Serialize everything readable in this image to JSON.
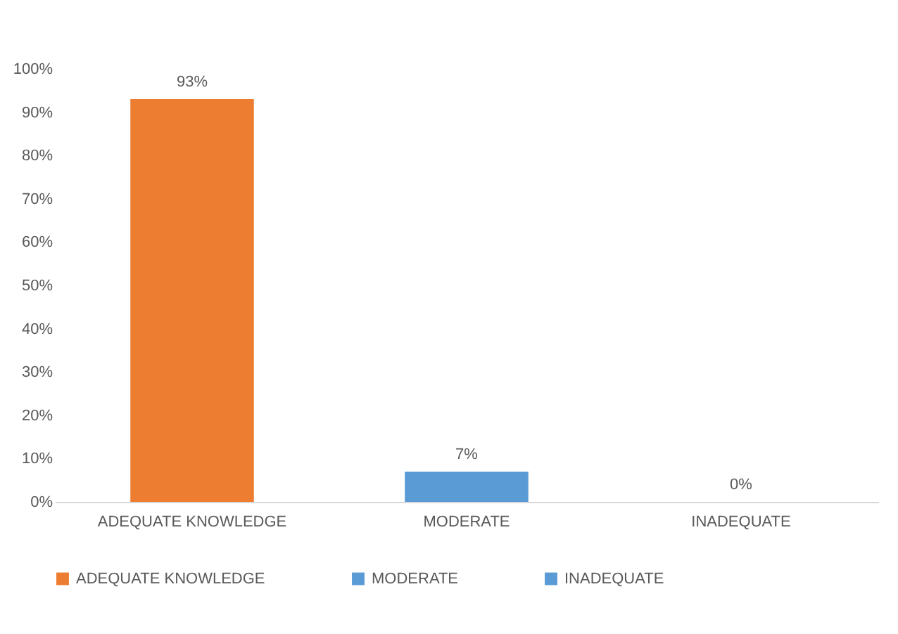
{
  "chart_data": {
    "type": "bar",
    "categories": [
      "ADEQUATE KNOWLEDGE",
      "MODERATE",
      "INADEQUATE"
    ],
    "series": [
      {
        "name": "ADEQUATE KNOWLEDGE",
        "color": "#ed7d31",
        "values": [
          93,
          null,
          null
        ],
        "value_labels": [
          "93%",
          null,
          null
        ]
      },
      {
        "name": "MODERATE",
        "color": "#5b9bd5",
        "values": [
          null,
          7,
          null
        ],
        "value_labels": [
          null,
          "7%",
          null
        ]
      },
      {
        "name": "INADEQUATE",
        "color": "#5b9bd5",
        "values": [
          null,
          null,
          0
        ],
        "value_labels": [
          null,
          null,
          "0%"
        ]
      }
    ],
    "ylim": [
      0,
      100
    ],
    "yticks": [
      {
        "value": 0,
        "label": "0%"
      },
      {
        "value": 10,
        "label": "10%"
      },
      {
        "value": 20,
        "label": "20%"
      },
      {
        "value": 30,
        "label": "30%"
      },
      {
        "value": 40,
        "label": "40%"
      },
      {
        "value": 50,
        "label": "50%"
      },
      {
        "value": 60,
        "label": "60%"
      },
      {
        "value": 70,
        "label": "70%"
      },
      {
        "value": 80,
        "label": "80%"
      },
      {
        "value": 90,
        "label": "90%"
      },
      {
        "value": 100,
        "label": "100%"
      }
    ],
    "grid": false,
    "legend": "bottom"
  }
}
